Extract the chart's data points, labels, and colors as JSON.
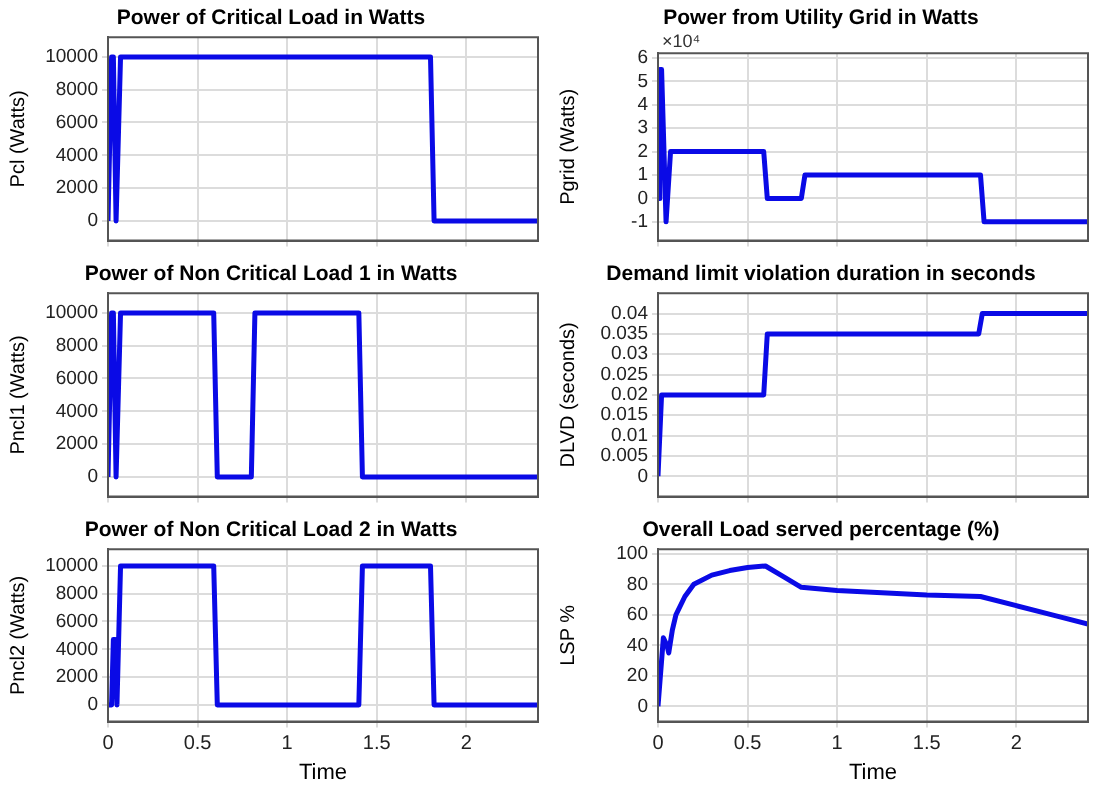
{
  "chart_data": [
    {
      "type": "line",
      "title": "Power of Critical Load in Watts",
      "ylabel": "Pcl (Watts)",
      "xlim": [
        0,
        2.4
      ],
      "xticks": [
        0,
        0.5,
        1,
        1.5,
        2
      ],
      "ylim": [
        -1200,
        11200
      ],
      "yticks": [
        0,
        2000,
        4000,
        6000,
        8000,
        10000
      ],
      "grid": true,
      "tick_labels": "y",
      "series": [
        {
          "color": "#0a0ae6",
          "x": [
            0,
            0.02,
            0.03,
            0.045,
            0.055,
            0.07,
            1.8,
            1.82,
            2.4
          ],
          "values": [
            0,
            10000,
            10000,
            0,
            0,
            10000,
            10000,
            0,
            0
          ]
        }
      ]
    },
    {
      "type": "line",
      "title": "Power from Utility Grid in Watts",
      "ylabel": "Pgrid (Watts)",
      "annotations": [
        "×10⁴"
      ],
      "xlim": [
        0,
        2.4
      ],
      "xticks": [
        0,
        0.5,
        1,
        1.5,
        2
      ],
      "ylim": [
        -1.8,
        6.2
      ],
      "yticks": [
        -1,
        0,
        1,
        2,
        3,
        4,
        5,
        6
      ],
      "grid": true,
      "tick_labels": "y",
      "series": [
        {
          "color": "#0a0ae6",
          "x": [
            0,
            0.01,
            0.02,
            0.045,
            0.07,
            0.59,
            0.61,
            0.8,
            0.82,
            1.8,
            1.82,
            2.4
          ],
          "values": [
            0,
            5.5,
            5.5,
            -1,
            2,
            2,
            0,
            0,
            1,
            1,
            -1,
            -1
          ]
        }
      ]
    },
    {
      "type": "line",
      "title": "Power of Non Critical Load 1 in Watts",
      "ylabel": "Pncl1 (Watts)",
      "xlim": [
        0,
        2.4
      ],
      "xticks": [
        0,
        0.5,
        1,
        1.5,
        2
      ],
      "ylim": [
        -1200,
        11200
      ],
      "yticks": [
        0,
        2000,
        4000,
        6000,
        8000,
        10000
      ],
      "grid": true,
      "tick_labels": "y",
      "series": [
        {
          "color": "#0a0ae6",
          "x": [
            0,
            0.02,
            0.03,
            0.045,
            0.055,
            0.07,
            0.59,
            0.61,
            0.8,
            0.82,
            1.4,
            1.42,
            2.4
          ],
          "values": [
            0,
            10000,
            10000,
            0,
            0,
            10000,
            10000,
            0,
            0,
            10000,
            10000,
            0,
            0
          ]
        }
      ]
    },
    {
      "type": "line",
      "title": "Demand limit violation duration in seconds",
      "ylabel": "DLVD (seconds)",
      "xlim": [
        0,
        2.4
      ],
      "xticks": [
        0,
        0.5,
        1,
        1.5,
        2
      ],
      "ylim": [
        -0.005,
        0.045
      ],
      "yticks": [
        0,
        0.005,
        0.01,
        0.015,
        0.02,
        0.025,
        0.03,
        0.035,
        0.04
      ],
      "grid": true,
      "tick_labels": "y",
      "series": [
        {
          "color": "#0a0ae6",
          "x": [
            0,
            0.02,
            0.59,
            0.61,
            1.79,
            1.81,
            2.4
          ],
          "values": [
            0,
            0.02,
            0.02,
            0.035,
            0.035,
            0.04,
            0.04
          ]
        }
      ]
    },
    {
      "type": "line",
      "title": "Power of Non Critical Load 2 in Watts",
      "ylabel": "Pncl2 (Watts)",
      "xlabel": "Time",
      "xlim": [
        0,
        2.4
      ],
      "xticks": [
        0,
        0.5,
        1,
        1.5,
        2
      ],
      "ylim": [
        -1200,
        11200
      ],
      "yticks": [
        0,
        2000,
        4000,
        6000,
        8000,
        10000
      ],
      "grid": true,
      "series": [
        {
          "color": "#0a0ae6",
          "x": [
            0,
            0.02,
            0.03,
            0.04,
            0.05,
            0.07,
            0.59,
            0.61,
            1.4,
            1.42,
            1.8,
            1.82,
            2.4
          ],
          "values": [
            0,
            0,
            4700,
            4700,
            0,
            10000,
            10000,
            0,
            0,
            10000,
            10000,
            0,
            0
          ]
        }
      ]
    },
    {
      "type": "line",
      "title": "Overall Load served percentage (%)",
      "ylabel": "LSP %",
      "xlabel": "Time",
      "xlim": [
        0,
        2.4
      ],
      "xticks": [
        0,
        0.5,
        1,
        1.5,
        2
      ],
      "ylim": [
        -10,
        103
      ],
      "yticks": [
        0,
        20,
        40,
        60,
        80,
        100
      ],
      "grid": true,
      "series": [
        {
          "color": "#0a0ae6",
          "x": [
            0,
            0.03,
            0.05,
            0.06,
            0.08,
            0.1,
            0.15,
            0.2,
            0.3,
            0.4,
            0.5,
            0.6,
            0.7,
            0.8,
            1,
            1.5,
            1.8,
            2,
            2.2,
            2.4
          ],
          "values": [
            0,
            45,
            40,
            35,
            50,
            60,
            72,
            80,
            86,
            89,
            91,
            92,
            85,
            78,
            76,
            73,
            72,
            66,
            60,
            54
          ]
        }
      ]
    }
  ]
}
